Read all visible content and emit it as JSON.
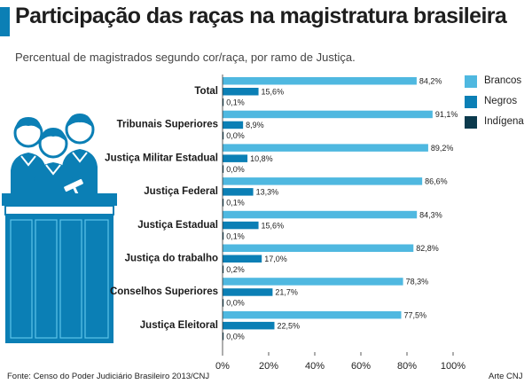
{
  "title": "Participação das raças na magistratura brasileira",
  "subtitle": "Percentual de magistrados segundo cor/raça, por ramo de Justiça.",
  "footer": {
    "source": "Fonte: Censo do Poder Judiciário Brasileiro 2013/CNJ",
    "credit": "Arte CNJ"
  },
  "colors": {
    "brancos": "#4fb8e0",
    "negros": "#0b7fb5",
    "indigena": "#0b3a4d",
    "accent": "#0b7fb5"
  },
  "chart_data": {
    "type": "bar",
    "orientation": "horizontal",
    "title": "Participação das raças na magistratura brasileira",
    "subtitle": "Percentual de magistrados segundo cor/raça, por ramo de Justiça.",
    "categories": [
      "Total",
      "Tribunais Superiores",
      "Justiça Militar Estadual",
      "Justiça Federal",
      "Justiça Estadual",
      "Justiça do trabalho",
      "Conselhos Superiores",
      "Justiça Eleitoral"
    ],
    "series": [
      {
        "name": "Brancos",
        "values": [
          84.2,
          91.1,
          89.2,
          86.6,
          84.3,
          82.8,
          78.3,
          77.5
        ],
        "labels": [
          "84,2%",
          "91,1%",
          "89,2%",
          "86,6%",
          "84,3%",
          "82,8%",
          "78,3%",
          "77,5%"
        ]
      },
      {
        "name": "Negros",
        "values": [
          15.6,
          8.9,
          10.8,
          13.3,
          15.6,
          17.0,
          21.7,
          22.5
        ],
        "labels": [
          "15,6%",
          "8,9%",
          "10,8%",
          "13,3%",
          "15,6%",
          "17,0%",
          "21,7%",
          "22,5%"
        ]
      },
      {
        "name": "Indígena",
        "values": [
          0.1,
          0.0,
          0.0,
          0.1,
          0.1,
          0.2,
          0.0,
          0.0
        ],
        "labels": [
          "0,1%",
          "0,0%",
          "0,0%",
          "0,1%",
          "0,1%",
          "0,2%",
          "0,0%",
          "0,0%"
        ]
      }
    ],
    "xlim": [
      0,
      100
    ],
    "xticks": [
      0,
      20,
      40,
      60,
      80,
      100
    ],
    "xtick_labels": [
      "0%",
      "20%",
      "40%",
      "60%",
      "80%",
      "100%"
    ],
    "grid": false,
    "legend_position": "right"
  }
}
